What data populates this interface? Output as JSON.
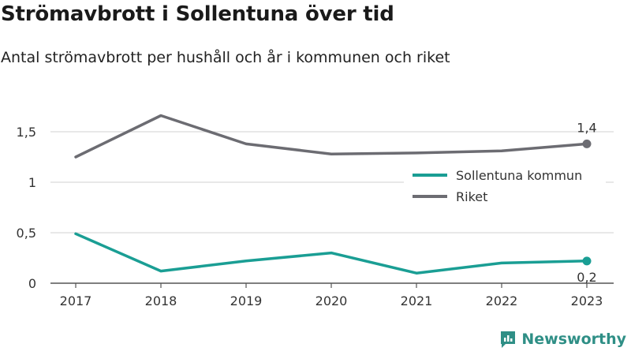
{
  "title": "Strömavbrott i Sollentuna över tid",
  "subtitle": "Antal strömavbrott per hushåll och år i kommunen och riket",
  "brand": {
    "name": "Newsworthy",
    "logo_icon": "newsworthy-logo-icon"
  },
  "colors": {
    "kommun": "#1a9e94",
    "riket": "#6c6c72",
    "grid": "#d9d9d9",
    "axis": "#555555",
    "text": "#333333"
  },
  "chart_data": {
    "type": "line",
    "x": [
      "2017",
      "2018",
      "2019",
      "2020",
      "2021",
      "2022",
      "2023"
    ],
    "y_ticks": [
      "0",
      "0,5",
      "1",
      "1,5"
    ],
    "y_tick_values": [
      0,
      0.5,
      1,
      1.5
    ],
    "ylim": [
      0,
      1.5
    ],
    "grid": true,
    "legend_position": "right",
    "series": [
      {
        "name": "Sollentuna kommun",
        "values": [
          0.49,
          0.12,
          0.22,
          0.3,
          0.1,
          0.2,
          0.22
        ],
        "end_label": "0,2",
        "color": "#1a9e94"
      },
      {
        "name": "Riket",
        "values": [
          1.25,
          1.66,
          1.38,
          1.28,
          1.29,
          1.31,
          1.38
        ],
        "end_label": "1,4",
        "color": "#6c6c72"
      }
    ]
  }
}
